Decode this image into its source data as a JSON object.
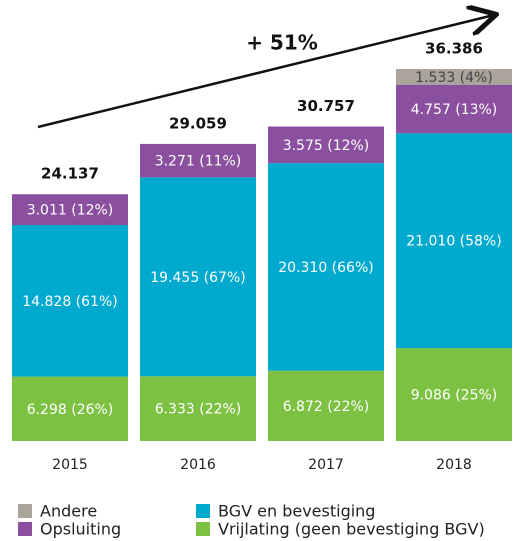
{
  "chart_data": {
    "type": "stacked-bar",
    "annotation": "+ 51%",
    "categories": [
      "2015",
      "2016",
      "2017",
      "2018"
    ],
    "series": [
      {
        "name": "Vrijlating (geen bevestiging BGV)",
        "color": "#7dc142",
        "values": [
          6298,
          6333,
          6872,
          9086
        ],
        "value_labels": [
          "6.298 (26%)",
          "6.333 (22%)",
          "6.872 (22%)",
          "9.086 (25%)"
        ]
      },
      {
        "name": "BGV en bevestiging",
        "color": "#00a9ce",
        "values": [
          14828,
          19455,
          20310,
          21010
        ],
        "value_labels": [
          "14.828 (61%)",
          "19.455 (67%)",
          "20.310 (66%)",
          "21.010 (58%)"
        ]
      },
      {
        "name": "Opsluiting",
        "color": "#8b4f9f",
        "values": [
          3011,
          3271,
          3575,
          4757
        ],
        "value_labels": [
          "3.011 (12%)",
          "3.271 (11%)",
          "3.575 (12%)",
          "4.757 (13%)"
        ]
      },
      {
        "name": "Andere",
        "color": "#aaa49b",
        "values": [
          null,
          null,
          null,
          1533
        ],
        "value_labels": [
          null,
          null,
          null,
          "1.533 (4%)"
        ]
      }
    ],
    "totals": {
      "values": [
        24137,
        29059,
        30757,
        36386
      ],
      "value_labels": [
        "24.137",
        "29.059",
        "30.757",
        "36.386"
      ]
    }
  }
}
